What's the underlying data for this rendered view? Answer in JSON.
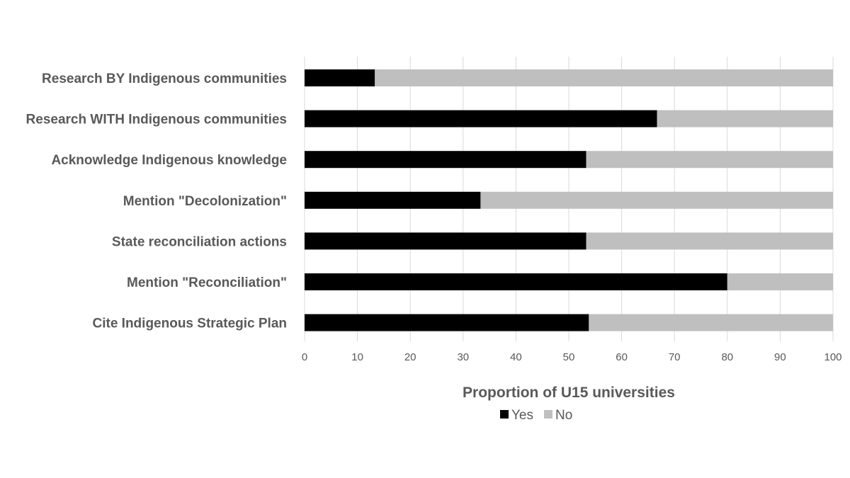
{
  "chart_data": {
    "type": "bar",
    "orientation": "horizontal",
    "stacked": true,
    "categories": [
      "Research BY Indigenous communities",
      "Research WITH Indigenous communities",
      "Acknowledge Indigenous knowledge",
      "Mention \"Decolonization\"",
      "State reconciliation actions",
      "Mention \"Reconciliation\"",
      "Cite Indigenous Strategic Plan"
    ],
    "series": [
      {
        "name": "Yes",
        "color": "#000000",
        "values": [
          13.3,
          66.7,
          53.3,
          33.3,
          53.3,
          80.0,
          53.8
        ]
      },
      {
        "name": "No",
        "color": "#bfbfbf",
        "values": [
          86.7,
          33.3,
          46.7,
          66.7,
          46.7,
          20.0,
          46.2
        ]
      }
    ],
    "xlabel": "Proportion of U15 universities",
    "ylabel": "",
    "xlim": [
      0,
      100
    ],
    "xticks": [
      "0",
      "10",
      "20",
      "30",
      "40",
      "50",
      "60",
      "70",
      "80",
      "90",
      "100"
    ],
    "grid": true,
    "legend": "bottom"
  }
}
